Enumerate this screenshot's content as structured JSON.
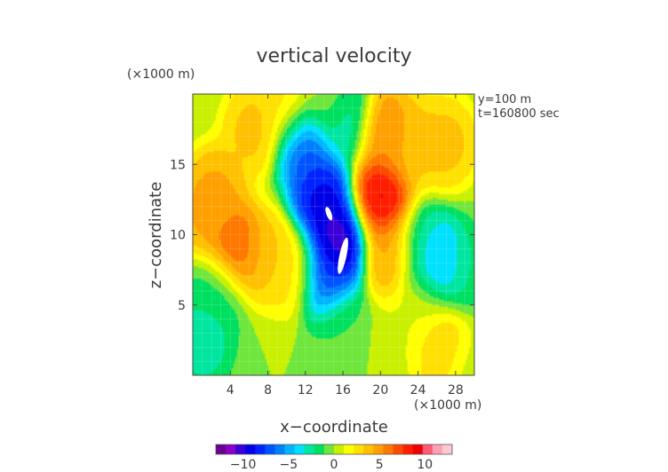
{
  "chart_data": {
    "type": "heatmap",
    "title": "vertical velocity",
    "xlabel": "x−coordinate",
    "ylabel": "z−coordinate",
    "x_unit": "(×1000 m)",
    "y_unit": "(×1000 m)",
    "annotations": [
      "y=100 m",
      "t=160800 sec"
    ],
    "xlim": [
      0,
      30
    ],
    "ylim": [
      0,
      20
    ],
    "x_ticks": [
      4,
      8,
      12,
      16,
      20,
      24,
      28
    ],
    "y_ticks": [
      5,
      10,
      15
    ],
    "colorbar": {
      "min": -13,
      "max": 13,
      "tick_values": [
        -10,
        -5,
        0,
        5,
        10
      ],
      "tick_labels": [
        "−10",
        "−5",
        "0",
        "5",
        "10"
      ],
      "colors": [
        "#6a0090",
        "#8a00c8",
        "#3a00d8",
        "#0000e6",
        "#0024ff",
        "#0054ff",
        "#0080ff",
        "#00b4ff",
        "#00e0ff",
        "#00e6a0",
        "#00e060",
        "#6ee63c",
        "#c8f000",
        "#ffff00",
        "#ffe000",
        "#ffc000",
        "#ffa000",
        "#ff7800",
        "#ff4a00",
        "#ff1e00",
        "#f00000",
        "#ff5a78",
        "#ffa0b4",
        "#ffc8d2"
      ]
    },
    "grid": true,
    "features": [
      {
        "x": 6.5,
        "z": 17.5,
        "value": 4
      },
      {
        "x": 2.5,
        "z": 13.0,
        "value": 5
      },
      {
        "x": 1.5,
        "z": 11.5,
        "value": 5
      },
      {
        "x": 4.5,
        "z": 9.0,
        "value": 8
      },
      {
        "x": 7.5,
        "z": 8.5,
        "value": 4
      },
      {
        "x": 10.5,
        "z": 7.5,
        "value": 3
      },
      {
        "x": 10.0,
        "z": 19.0,
        "value": 3
      },
      {
        "x": 14.5,
        "z": 19.5,
        "value": 1
      },
      {
        "x": 16.2,
        "z": 18.5,
        "value": -4
      },
      {
        "x": 11.8,
        "z": 16.5,
        "value": -8
      },
      {
        "x": 13.8,
        "z": 12.5,
        "value": -10
      },
      {
        "x": 15.5,
        "z": 9.5,
        "value": -12
      },
      {
        "x": 14.3,
        "z": 7.0,
        "value": -8
      },
      {
        "x": 20.0,
        "z": 12.5,
        "value": 10
      },
      {
        "x": 20.5,
        "z": 17.5,
        "value": 6
      },
      {
        "x": 21.0,
        "z": 8.5,
        "value": 5
      },
      {
        "x": 23.5,
        "z": 16.5,
        "value": 4
      },
      {
        "x": 27.0,
        "z": 16.5,
        "value": 4
      },
      {
        "x": 24.5,
        "z": 9.0,
        "value": -2
      },
      {
        "x": 26.0,
        "z": 8.0,
        "value": -7
      },
      {
        "x": 29.0,
        "z": 7.5,
        "value": -2
      },
      {
        "x": 26.5,
        "z": 2.0,
        "value": 4
      },
      {
        "x": 24.5,
        "z": 5.0,
        "value": 1
      },
      {
        "x": 1.0,
        "z": 2.5,
        "value": -3
      },
      {
        "x": 2.5,
        "z": 6.0,
        "value": -2
      },
      {
        "x": 16.0,
        "z": 3.5,
        "value": -1
      },
      {
        "x": 22.0,
        "z": 2.5,
        "value": 1
      },
      {
        "x": 29.5,
        "z": 0.5,
        "value": 0.5
      }
    ],
    "undefined_regions": [
      {
        "x": 14.5,
        "z": 11.5
      },
      {
        "x": 16.0,
        "z": 8.5
      }
    ]
  }
}
